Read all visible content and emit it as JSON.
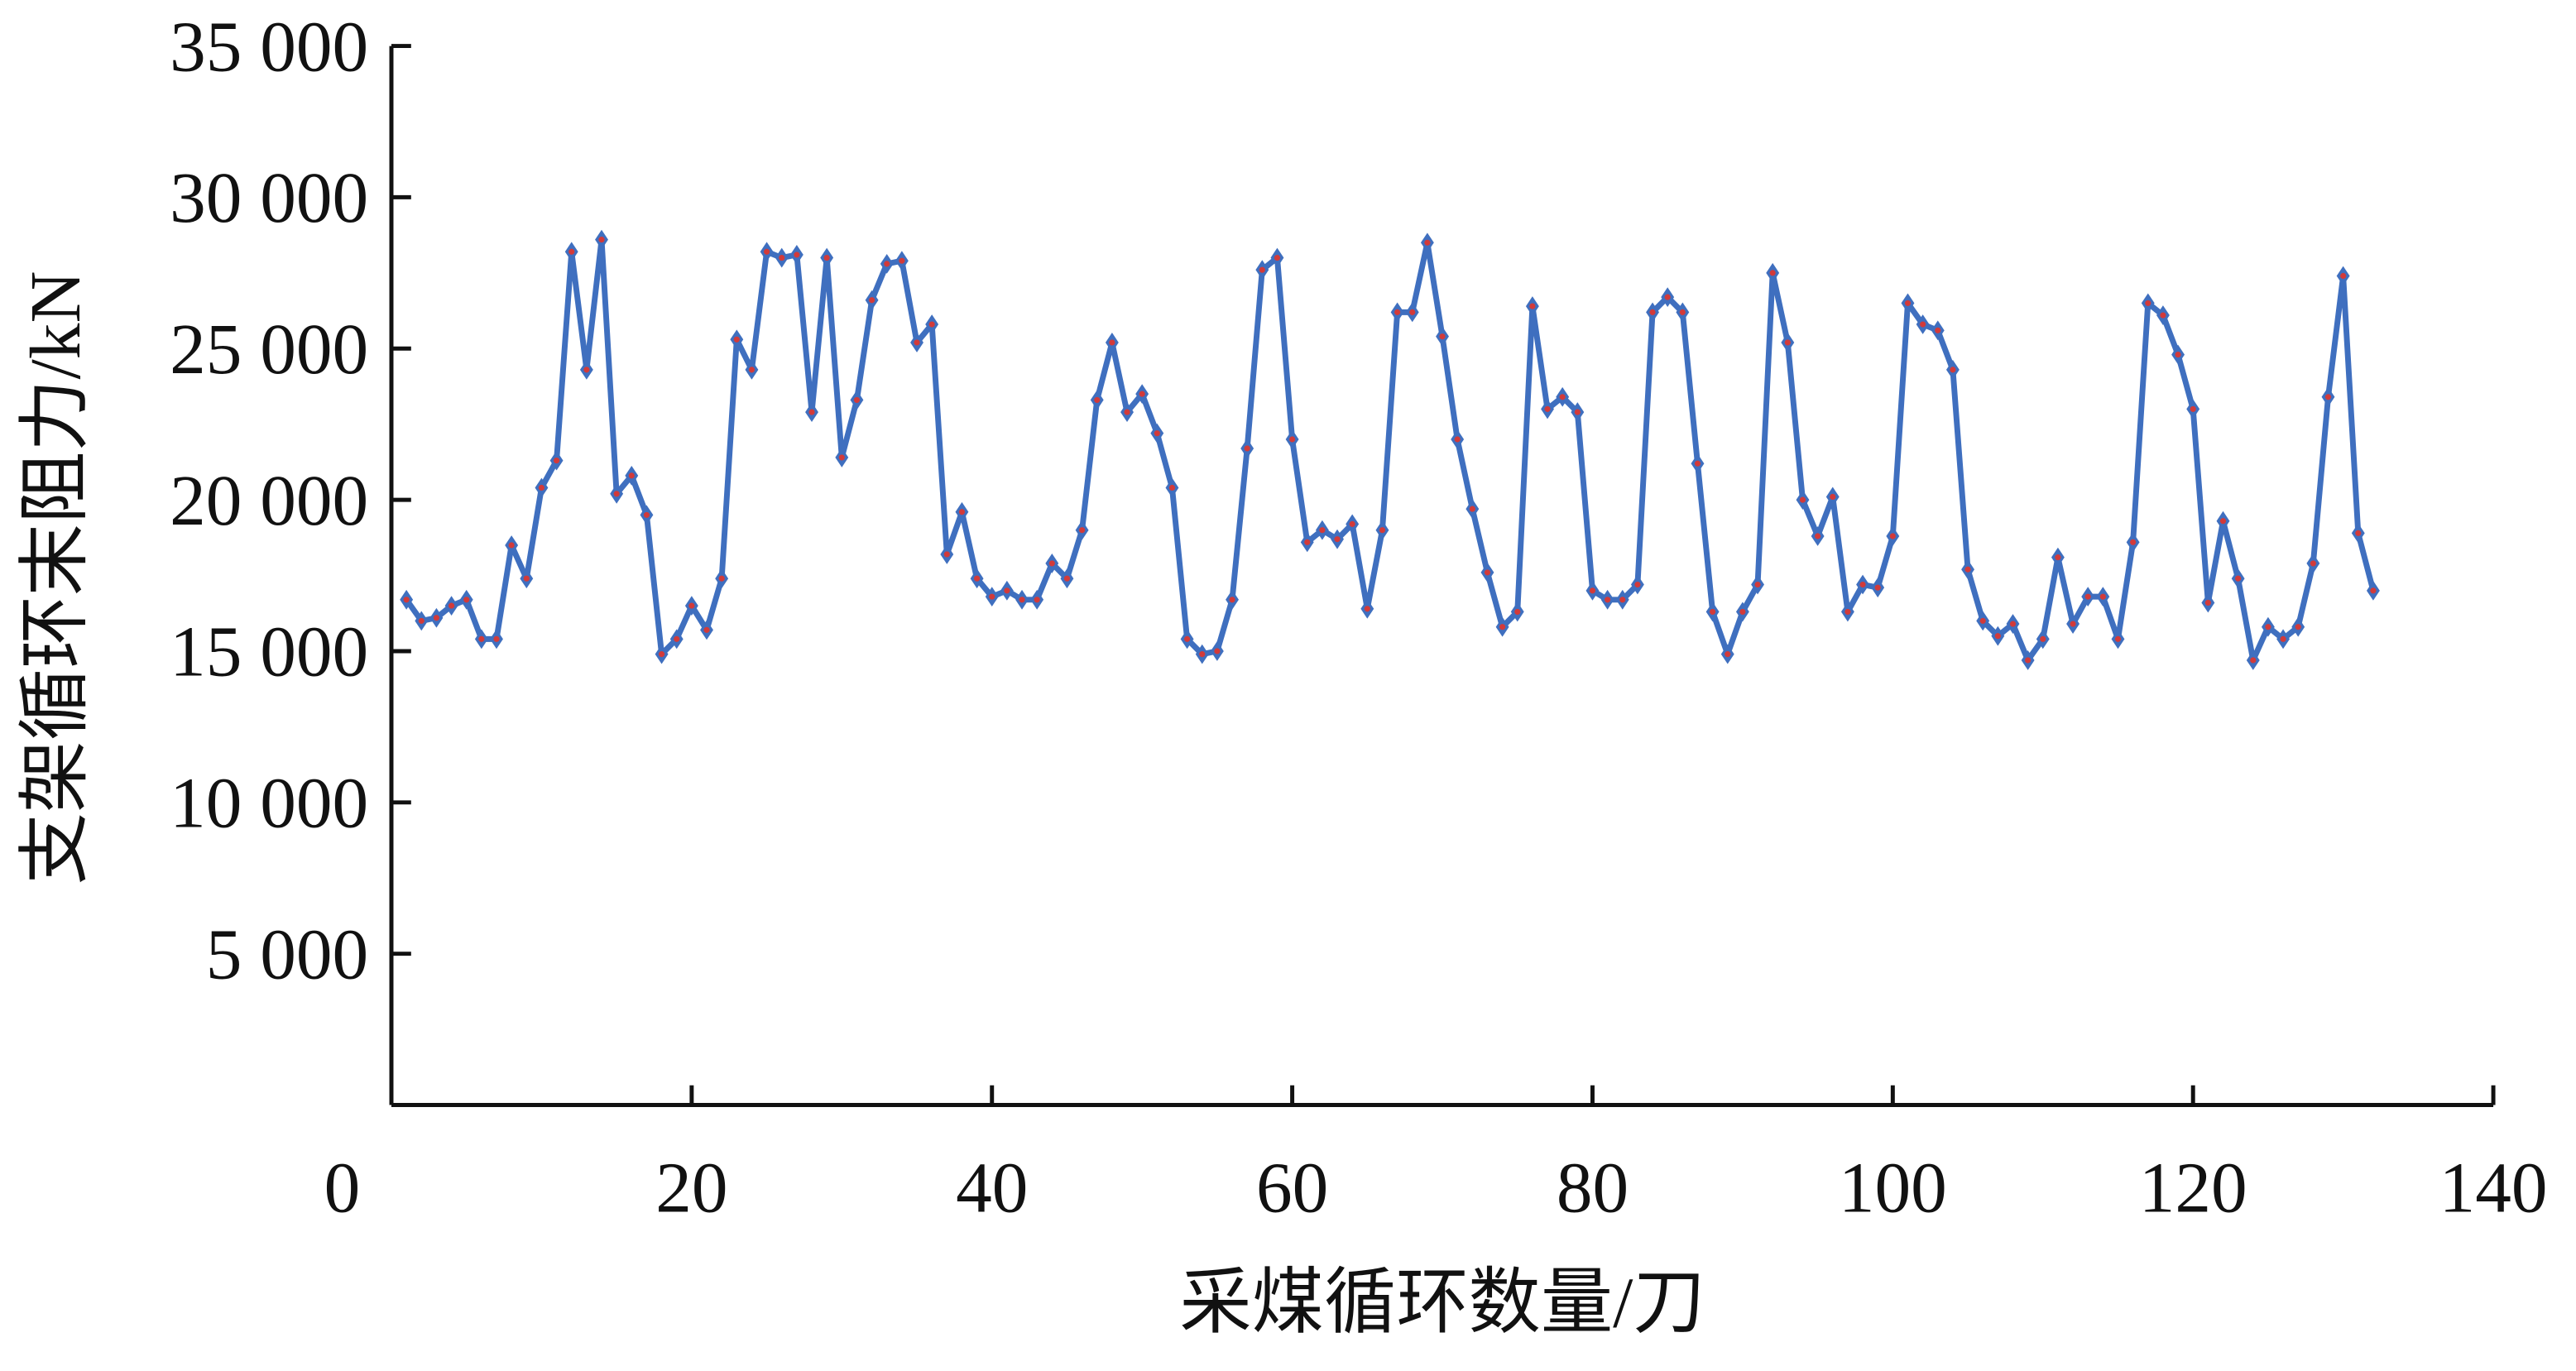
{
  "chart_data": {
    "type": "line",
    "x_label": "采煤循环数量/刀",
    "y_label": "支架循环末阻力/kN",
    "x": [
      1,
      2,
      3,
      4,
      5,
      6,
      7,
      8,
      9,
      10,
      11,
      12,
      13,
      14,
      15,
      16,
      17,
      18,
      19,
      20,
      21,
      22,
      23,
      24,
      25,
      26,
      27,
      28,
      29,
      30,
      31,
      32,
      33,
      34,
      35,
      36,
      37,
      38,
      39,
      40,
      41,
      42,
      43,
      44,
      45,
      46,
      47,
      48,
      49,
      50,
      51,
      52,
      53,
      54,
      55,
      56,
      57,
      58,
      59,
      60,
      61,
      62,
      63,
      64,
      65,
      66,
      67,
      68,
      69,
      70,
      71,
      72,
      73,
      74,
      75,
      76,
      77,
      78,
      79,
      80,
      81,
      82,
      83,
      84,
      85,
      86,
      87,
      88,
      89,
      90,
      91,
      92,
      93,
      94,
      95,
      96,
      97,
      98,
      99,
      100,
      101,
      102,
      103,
      104,
      105,
      106,
      107,
      108,
      109,
      110,
      111,
      112,
      113,
      114,
      115,
      116,
      117,
      118,
      119,
      120,
      121,
      122,
      123,
      124,
      125,
      126,
      127,
      128,
      129,
      130,
      131,
      132
    ],
    "series": [
      {
        "color": "#3f6fbf",
        "marker_color": "#d23a3a",
        "values": [
          16700,
          16000,
          16100,
          16500,
          16700,
          15400,
          15400,
          18500,
          17400,
          20400,
          21300,
          28200,
          24300,
          28600,
          20200,
          20800,
          19500,
          14900,
          15400,
          16500,
          15700,
          17400,
          25300,
          24300,
          28200,
          28000,
          28100,
          22900,
          28000,
          21400,
          23300,
          26600,
          27800,
          27900,
          25200,
          25800,
          18200,
          19600,
          17400,
          16800,
          17000,
          16700,
          16700,
          17900,
          17400,
          19000,
          23300,
          25200,
          22900,
          23500,
          22200,
          20400,
          15400,
          14900,
          15000,
          16700,
          21700,
          27600,
          28000,
          22000,
          18600,
          19000,
          18700,
          19200,
          16400,
          19000,
          26200,
          26200,
          28500,
          25400,
          22000,
          19700,
          17600,
          15800,
          16300,
          26400,
          23000,
          23400,
          22900,
          17000,
          16700,
          16700,
          17200,
          26200,
          26700,
          26200,
          21200,
          16300,
          14900,
          16300,
          17200,
          27500,
          25200,
          20000,
          18800,
          20100,
          16300,
          17200,
          17100,
          18800,
          26500,
          25800,
          25600,
          24300,
          17700,
          16000,
          15500,
          15900,
          14700,
          15400,
          18100,
          15900,
          16800,
          16800,
          15400,
          18600,
          26500,
          26100,
          24800,
          23000,
          16600,
          19300,
          17400,
          14700,
          15800,
          15400,
          15800,
          17900,
          23400,
          27400,
          18900,
          17000
        ]
      }
    ],
    "xlim": [
      0,
      140
    ],
    "xticks": [
      0,
      20,
      40,
      60,
      80,
      100,
      120,
      140
    ],
    "ylim": [
      0,
      35000
    ],
    "yticks": [
      {
        "value": 5000,
        "label": "5 000"
      },
      {
        "value": 10000,
        "label": "10 000"
      },
      {
        "value": 15000,
        "label": "15 000"
      },
      {
        "value": 20000,
        "label": "20 000"
      },
      {
        "value": 25000,
        "label": "25 000"
      },
      {
        "value": 30000,
        "label": "30 000"
      },
      {
        "value": 35000,
        "label": "35 000"
      }
    ]
  }
}
